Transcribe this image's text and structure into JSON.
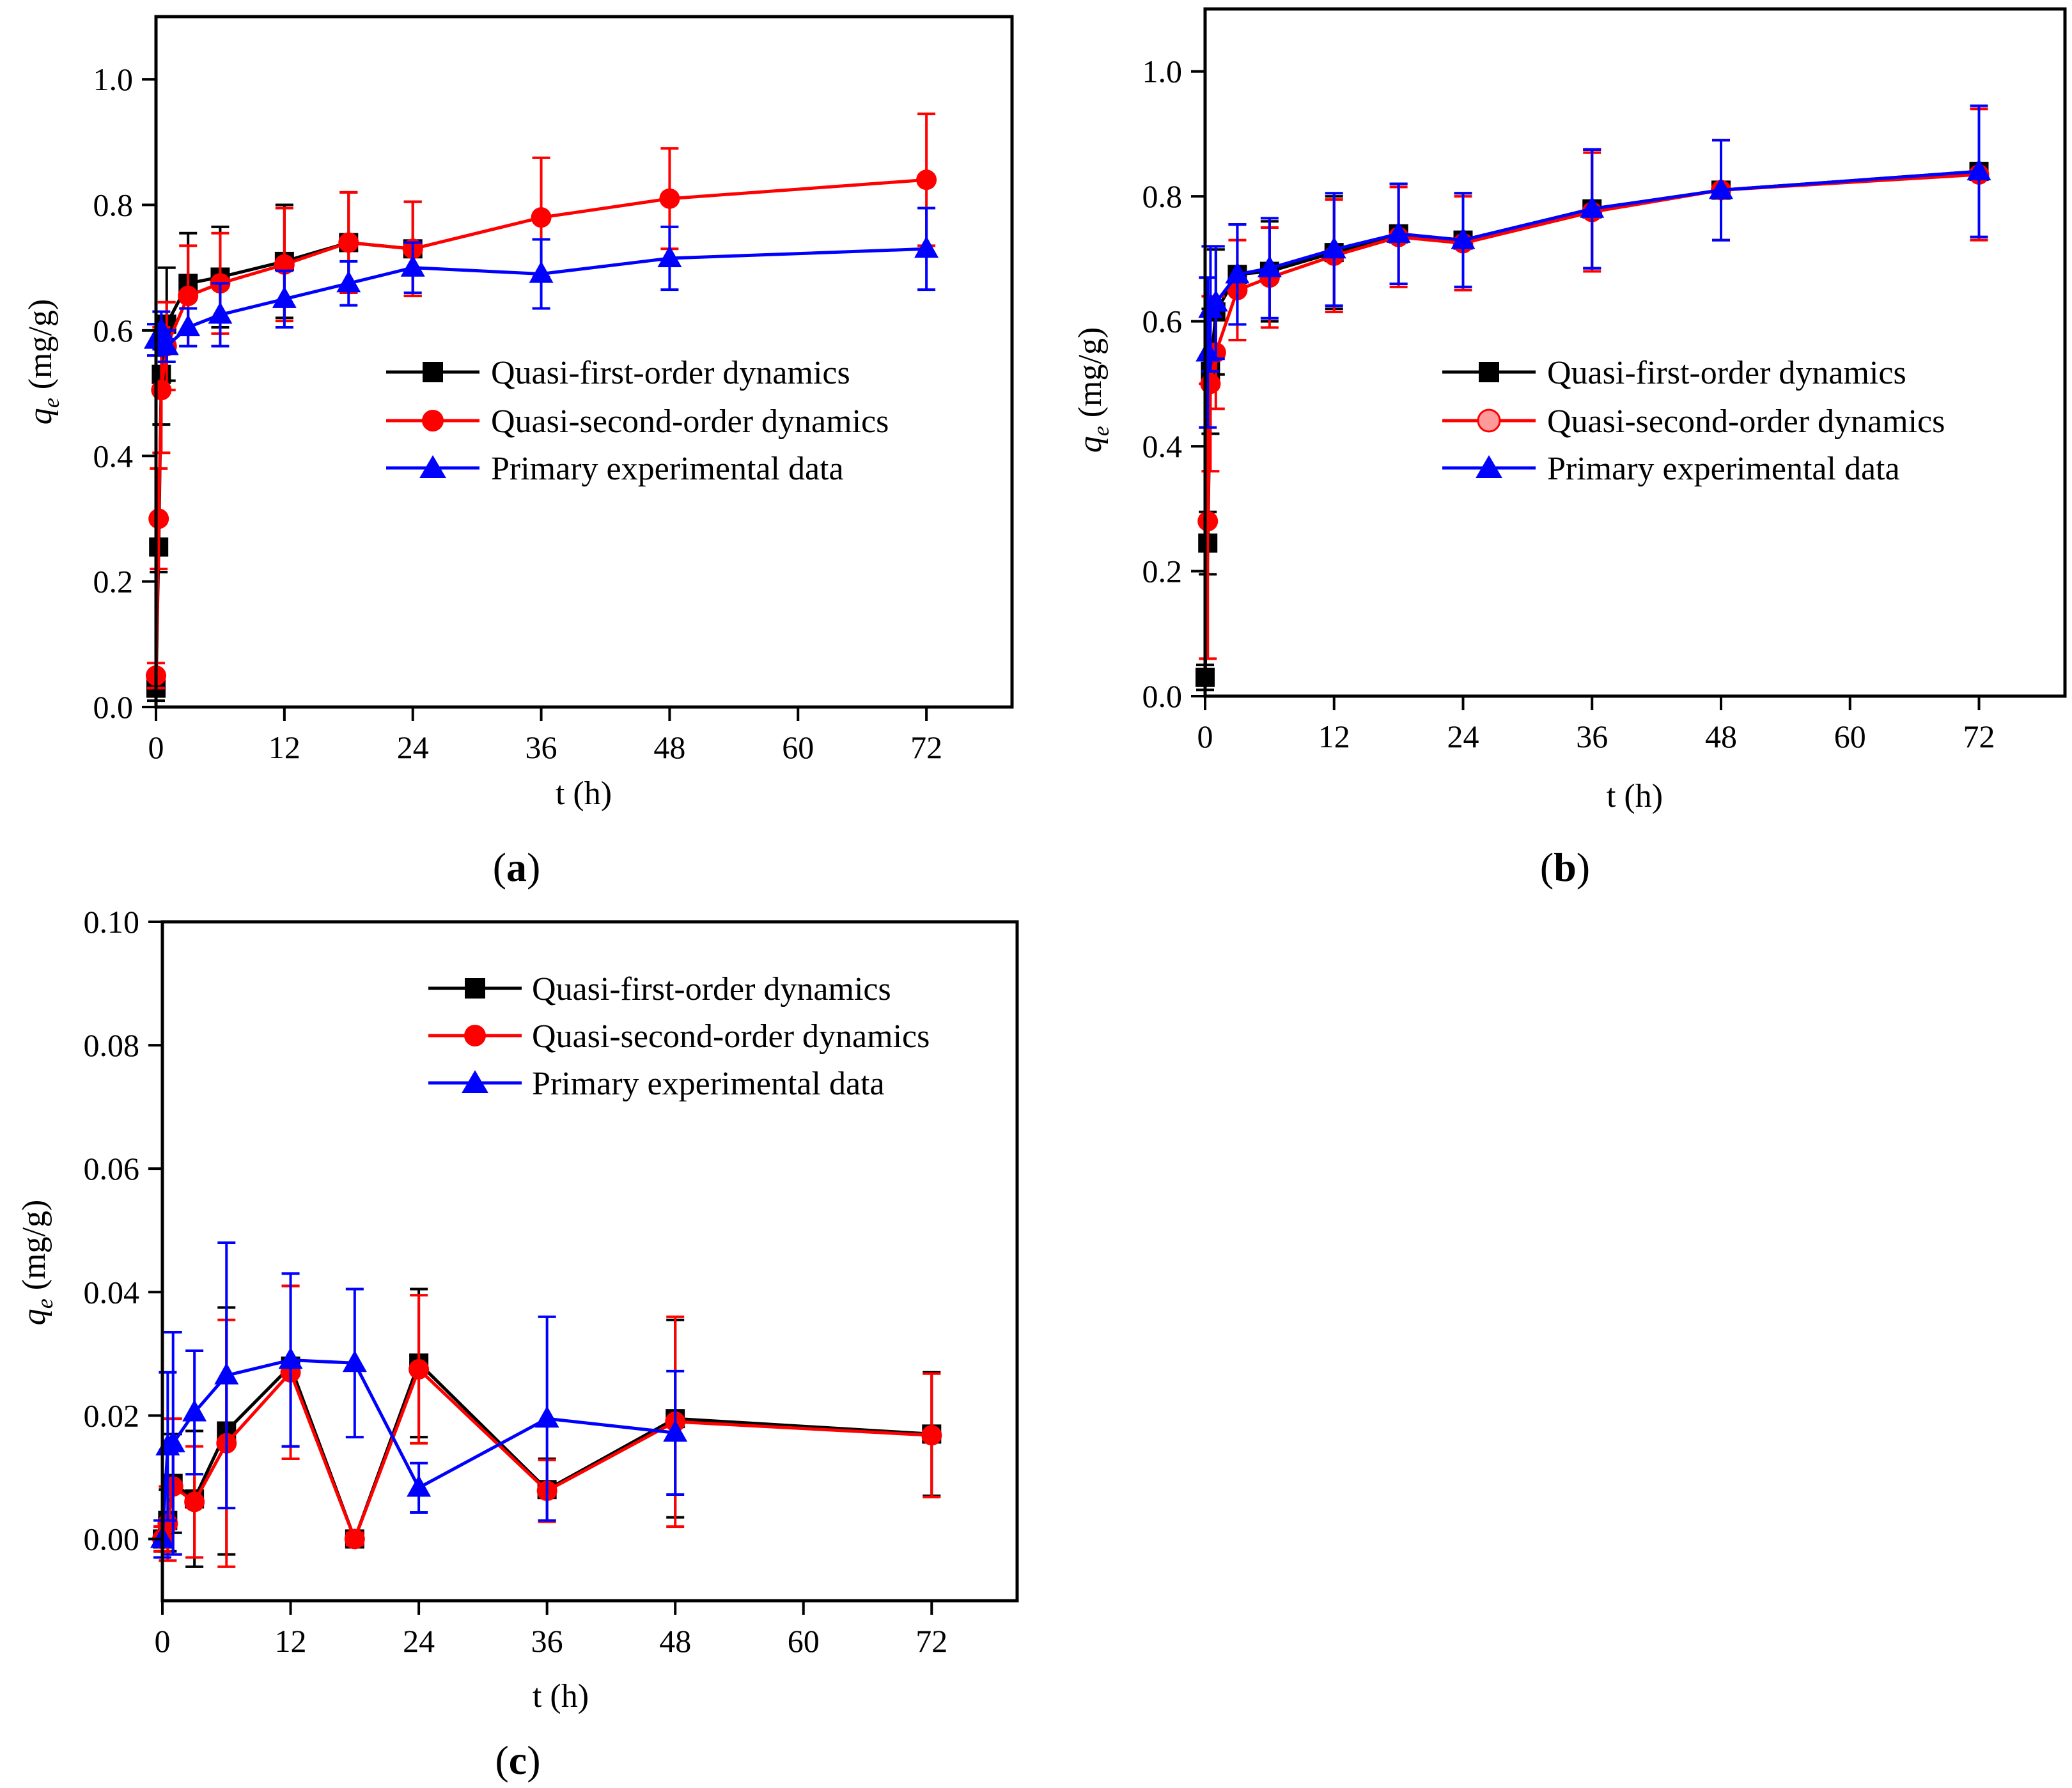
{
  "figure": {
    "panels": [
      {
        "caption_open": "(",
        "caption_letter": "a",
        "caption_close": ")"
      },
      {
        "caption_open": "(",
        "caption_letter": "b",
        "caption_close": ")"
      },
      {
        "caption_open": "(",
        "caption_letter": "c",
        "caption_close": ")"
      }
    ]
  },
  "colors": {
    "quasi_first": "#000000",
    "quasi_second": "#ff0000",
    "experimental": "#0000ff"
  },
  "chart_data": [
    {
      "type": "line",
      "panel": "a",
      "xlabel": "t (h)",
      "ylabel_symbol": "q",
      "ylabel_sub": "e",
      "ylabel_unit": " (mg/g)",
      "xlim": [
        0,
        80
      ],
      "ylim": [
        0,
        1.1
      ],
      "xticks": [
        0,
        12,
        24,
        36,
        48,
        60,
        72
      ],
      "yticks": [
        0.0,
        0.2,
        0.4,
        0.6,
        0.8,
        1.0
      ],
      "ytick_labels": [
        "0.0",
        "0.2",
        "0.4",
        "0.6",
        "0.8",
        "1.0"
      ],
      "legend_position": "middle-right",
      "series": [
        {
          "name": "Quasi-first-order dynamics",
          "marker": "square",
          "color": "#000000",
          "x": [
            0,
            0.25,
            0.5,
            1,
            3,
            6,
            12,
            18,
            24
          ],
          "y": [
            0.03,
            0.255,
            0.53,
            0.61,
            0.675,
            0.685,
            0.71,
            0.74,
            0.73
          ],
          "err": [
            0.02,
            0.04,
            0.08,
            0.09,
            0.08,
            0.08,
            0.09,
            0.08,
            0.075
          ]
        },
        {
          "name": "Quasi-second-order dynamics",
          "marker": "circle",
          "color": "#ff0000",
          "x": [
            0,
            0.25,
            0.5,
            1,
            3,
            6,
            12,
            18,
            24,
            36,
            48,
            72
          ],
          "y": [
            0.05,
            0.3,
            0.505,
            0.575,
            0.655,
            0.675,
            0.705,
            0.74,
            0.73,
            0.78,
            0.81,
            0.84
          ],
          "err": [
            0.02,
            0.08,
            0.1,
            0.07,
            0.08,
            0.08,
            0.09,
            0.08,
            0.075,
            0.095,
            0.08,
            0.105
          ]
        },
        {
          "name": "Primary experimental data",
          "marker": "triangle",
          "color": "#0000ff",
          "x": [
            0,
            0.5,
            1,
            3,
            6,
            12,
            18,
            24,
            36,
            48,
            72
          ],
          "y": [
            0.585,
            0.6,
            0.575,
            0.605,
            0.625,
            0.65,
            0.675,
            0.7,
            0.69,
            0.715,
            0.73
          ],
          "err": [
            0.025,
            0.03,
            0.025,
            0.03,
            0.05,
            0.045,
            0.035,
            0.04,
            0.055,
            0.05,
            0.065
          ]
        }
      ]
    },
    {
      "type": "line",
      "panel": "b",
      "xlabel": "t (h)",
      "ylabel_symbol": "q",
      "ylabel_sub": "e",
      "ylabel_unit": " (mg/g)",
      "xlim": [
        0,
        80
      ],
      "ylim": [
        0,
        1.1
      ],
      "xticks": [
        0,
        12,
        24,
        36,
        48,
        60,
        72
      ],
      "yticks": [
        0.0,
        0.2,
        0.4,
        0.6,
        0.8,
        1.0
      ],
      "ytick_labels": [
        "0.0",
        "0.2",
        "0.4",
        "0.6",
        "0.8",
        "1.0"
      ],
      "legend_position": "middle-right",
      "series": [
        {
          "name": "Quasi-first-order dynamics",
          "marker": "square",
          "color": "#000000",
          "x": [
            0,
            0.25,
            0.5,
            1,
            3,
            6,
            12,
            18,
            24,
            36,
            48,
            72
          ],
          "y": [
            0.03,
            0.245,
            0.52,
            0.615,
            0.675,
            0.68,
            0.71,
            0.74,
            0.73,
            0.78,
            0.81,
            0.84
          ],
          "err": [
            0.02,
            0.05,
            0.1,
            0.1,
            0.08,
            0.08,
            0.09,
            0.08,
            0.075,
            0.095,
            0.08,
            0.105
          ]
        },
        {
          "name": "Quasi-second-order dynamics",
          "marker": "circle",
          "color": "#ff0000",
          "x": [
            0.25,
            0.5,
            1,
            3,
            6,
            12,
            18,
            24,
            36,
            48,
            72
          ],
          "y": [
            0.28,
            0.5,
            0.55,
            0.65,
            0.67,
            0.705,
            0.735,
            0.725,
            0.775,
            0.81,
            0.835
          ],
          "err": [
            0.22,
            0.14,
            0.09,
            0.08,
            0.08,
            0.09,
            0.08,
            0.075,
            0.095,
            0.08,
            0.105
          ]
        },
        {
          "name": "Primary experimental data",
          "marker": "triangle",
          "color": "#0000ff",
          "x": [
            0.25,
            0.5,
            1,
            3,
            6,
            12,
            18,
            24,
            36,
            48,
            72
          ],
          "y": [
            0.55,
            0.62,
            0.63,
            0.675,
            0.685,
            0.715,
            0.74,
            0.73,
            0.78,
            0.81,
            0.84
          ],
          "err": [
            0.12,
            0.1,
            0.09,
            0.08,
            0.08,
            0.09,
            0.08,
            0.075,
            0.095,
            0.08,
            0.105
          ]
        }
      ]
    },
    {
      "type": "line",
      "panel": "c",
      "xlabel": "t (h)",
      "ylabel_symbol": "q",
      "ylabel_sub": "e",
      "ylabel_unit": " (mg/g)",
      "xlim": [
        0,
        80
      ],
      "ylim": [
        -0.01,
        0.1
      ],
      "xticks": [
        0,
        12,
        24,
        36,
        48,
        60,
        72
      ],
      "yticks": [
        0.0,
        0.02,
        0.04,
        0.06,
        0.08,
        0.1
      ],
      "ytick_labels": [
        "0.00",
        "0.02",
        "0.04",
        "0.06",
        "0.08",
        "0.10"
      ],
      "legend_position": "top-right",
      "series": [
        {
          "name": "Quasi-first-order dynamics",
          "marker": "square",
          "color": "#000000",
          "x": [
            0,
            0.5,
            1,
            3,
            6,
            12,
            18,
            24,
            36,
            48,
            72
          ],
          "y": [
            0.0,
            0.003,
            0.009,
            0.0065,
            0.0175,
            0.028,
            0.0,
            0.0285,
            0.008,
            0.0195,
            0.017
          ],
          "err": [
            0.002,
            0.005,
            0.008,
            0.011,
            0.02,
            0.013,
            0.001,
            0.012,
            0.005,
            0.016,
            0.01
          ]
        },
        {
          "name": "Quasi-second-order dynamics",
          "marker": "circle",
          "color": "#ff0000",
          "x": [
            0,
            0.5,
            1,
            3,
            6,
            12,
            18,
            24,
            36,
            48,
            72
          ],
          "y": [
            0.0,
            0.0025,
            0.0085,
            0.006,
            0.0155,
            0.027,
            0.0,
            0.0275,
            0.0078,
            0.019,
            0.0168
          ],
          "err": [
            0.002,
            0.006,
            0.011,
            0.009,
            0.02,
            0.014,
            0.001,
            0.012,
            0.005,
            0.017,
            0.01
          ]
        },
        {
          "name": "Primary experimental data",
          "marker": "triangle",
          "color": "#0000ff",
          "x": [
            0,
            0.5,
            1,
            3,
            6,
            12,
            18,
            24,
            36,
            48
          ],
          "y": [
            0.0,
            0.015,
            0.0155,
            0.0205,
            0.0265,
            0.029,
            0.0285,
            0.0083,
            0.0195,
            0.0172
          ],
          "err": [
            0.003,
            0.012,
            0.018,
            0.01,
            0.0215,
            0.014,
            0.012,
            0.004,
            0.0165,
            0.01
          ]
        }
      ]
    }
  ]
}
